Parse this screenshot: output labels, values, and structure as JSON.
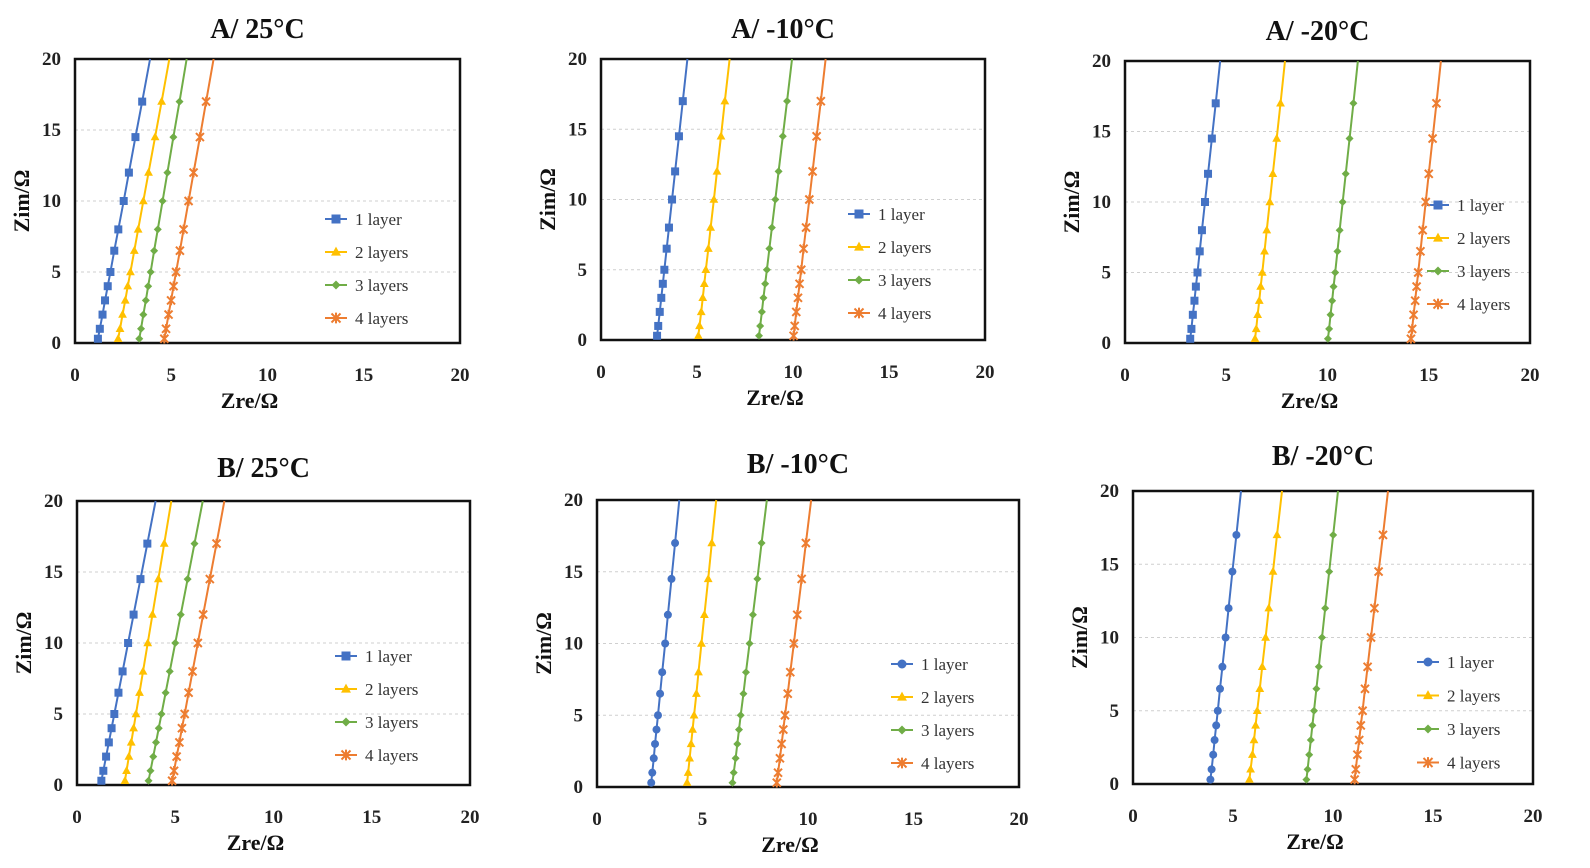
{
  "colors": {
    "1 layer": "#4472C4",
    "2 layers": "#FFC000",
    "3 layers": "#70AD47",
    "4 layers": "#ED7D31"
  },
  "chart_data": [
    {
      "type": "line",
      "title": "A/ 25°C",
      "xlabel": "Zre/Ω",
      "ylabel": "Zim/Ω",
      "xlim": [
        0,
        20
      ],
      "ylim": [
        0,
        20
      ],
      "xticks": [
        "0",
        "5",
        "10",
        "15",
        "20"
      ],
      "yticks": [
        "0",
        "5",
        "10",
        "15",
        "20"
      ],
      "grid": "horizontal dashed",
      "legend": "right",
      "y": [
        0.3,
        1,
        2,
        3,
        4,
        5,
        6.5,
        8,
        10,
        12,
        14.5,
        17,
        20
      ],
      "series": [
        {
          "name": "1 layer",
          "marker": "square",
          "x": [
            1.19,
            1.29,
            1.43,
            1.56,
            1.7,
            1.84,
            2.04,
            2.25,
            2.53,
            2.8,
            3.14,
            3.49,
            3.9
          ]
        },
        {
          "name": "2 layers",
          "marker": "triangle",
          "x": [
            2.24,
            2.34,
            2.47,
            2.61,
            2.74,
            2.88,
            3.08,
            3.28,
            3.55,
            3.82,
            4.16,
            4.5,
            4.9
          ]
        },
        {
          "name": "3 layers",
          "marker": "diamond",
          "x": [
            3.34,
            3.43,
            3.55,
            3.68,
            3.8,
            3.93,
            4.11,
            4.3,
            4.55,
            4.8,
            5.11,
            5.43,
            5.8
          ]
        },
        {
          "name": "4 layers",
          "marker": "star",
          "x": [
            4.64,
            4.73,
            4.86,
            4.99,
            5.12,
            5.25,
            5.45,
            5.64,
            5.9,
            6.16,
            6.49,
            6.81,
            7.2
          ]
        }
      ]
    },
    {
      "type": "line",
      "title": "A/ -10°C",
      "xlabel": "Zre/Ω",
      "ylabel": "Zim/Ω",
      "xlim": [
        0,
        20
      ],
      "ylim": [
        0,
        20
      ],
      "xticks": [
        "0",
        "5",
        "10",
        "15",
        "20"
      ],
      "yticks": [
        "0",
        "5",
        "10",
        "15",
        "20"
      ],
      "grid": "horizontal dashed",
      "legend": "right",
      "y": [
        0.3,
        1,
        2,
        3,
        4,
        5,
        6.5,
        8,
        10,
        12,
        14.5,
        17,
        20
      ],
      "series": [
        {
          "name": "1 layer",
          "marker": "square",
          "x": [
            2.92,
            2.98,
            3.06,
            3.14,
            3.22,
            3.3,
            3.42,
            3.54,
            3.7,
            3.86,
            4.06,
            4.26,
            4.5
          ]
        },
        {
          "name": "2 layers",
          "marker": "triangle",
          "x": [
            5.07,
            5.13,
            5.22,
            5.3,
            5.38,
            5.46,
            5.59,
            5.71,
            5.88,
            6.04,
            6.25,
            6.45,
            6.7
          ]
        },
        {
          "name": "3 layers",
          "marker": "diamond",
          "x": [
            8.23,
            8.29,
            8.38,
            8.46,
            8.55,
            8.64,
            8.77,
            8.9,
            9.08,
            9.25,
            9.47,
            9.69,
            9.95
          ]
        },
        {
          "name": "4 layers",
          "marker": "star",
          "x": [
            10.03,
            10.09,
            10.17,
            10.26,
            10.34,
            10.43,
            10.55,
            10.68,
            10.85,
            11.02,
            11.23,
            11.45,
            11.7
          ]
        }
      ]
    },
    {
      "type": "line",
      "title": "A/ -20°C",
      "xlabel": "Zre/Ω",
      "ylabel": "Zim/Ω",
      "xlim": [
        0,
        20
      ],
      "ylim": [
        0,
        20
      ],
      "xticks": [
        "0",
        "5",
        "10",
        "15",
        "20"
      ],
      "yticks": [
        "0",
        "5",
        "10",
        "15",
        "20"
      ],
      "grid": "horizontal dashed",
      "legend": "right",
      "y": [
        0.3,
        1,
        2,
        3,
        4,
        5,
        6.5,
        8,
        10,
        12,
        14.5,
        17,
        20
      ],
      "series": [
        {
          "name": "1 layer",
          "marker": "square",
          "x": [
            3.22,
            3.28,
            3.35,
            3.43,
            3.5,
            3.58,
            3.69,
            3.8,
            3.95,
            4.1,
            4.29,
            4.48,
            4.7
          ]
        },
        {
          "name": "2 layers",
          "marker": "triangle",
          "x": [
            6.42,
            6.48,
            6.55,
            6.63,
            6.7,
            6.78,
            6.89,
            7.0,
            7.15,
            7.3,
            7.49,
            7.68,
            7.9
          ]
        },
        {
          "name": "3 layers",
          "marker": "diamond",
          "x": [
            10.02,
            10.08,
            10.15,
            10.23,
            10.3,
            10.38,
            10.49,
            10.6,
            10.75,
            10.9,
            11.09,
            11.28,
            11.5
          ]
        },
        {
          "name": "4 layers",
          "marker": "star",
          "x": [
            14.12,
            14.18,
            14.25,
            14.33,
            14.4,
            14.48,
            14.59,
            14.7,
            14.85,
            15.0,
            15.19,
            15.38,
            15.6
          ]
        }
      ]
    },
    {
      "type": "line",
      "title": "B/ 25°C",
      "xlabel": "Zre/Ω",
      "ylabel": "Zim/Ω",
      "xlim": [
        0,
        20
      ],
      "ylim": [
        0,
        20
      ],
      "xticks": [
        "0",
        "5",
        "10",
        "15",
        "20"
      ],
      "yticks": [
        "0",
        "5",
        "10",
        "15",
        "20"
      ],
      "grid": "horizontal dashed",
      "legend": "right",
      "y": [
        0.3,
        1,
        2,
        3,
        4,
        5,
        6.5,
        8,
        10,
        12,
        14.5,
        17,
        20
      ],
      "series": [
        {
          "name": "1 layer",
          "marker": "square",
          "x": [
            1.24,
            1.34,
            1.48,
            1.62,
            1.76,
            1.9,
            2.11,
            2.32,
            2.6,
            2.88,
            3.23,
            3.58,
            4.0
          ]
        },
        {
          "name": "2 layers",
          "marker": "triangle",
          "x": [
            2.44,
            2.52,
            2.64,
            2.76,
            2.88,
            3.0,
            3.18,
            3.36,
            3.6,
            3.84,
            4.14,
            4.44,
            4.8
          ]
        },
        {
          "name": "3 layers",
          "marker": "diamond",
          "x": [
            3.64,
            3.74,
            3.88,
            4.02,
            4.16,
            4.3,
            4.51,
            4.72,
            5.0,
            5.28,
            5.63,
            5.98,
            6.4
          ]
        },
        {
          "name": "4 layers",
          "marker": "star",
          "x": [
            4.84,
            4.94,
            5.07,
            5.21,
            5.34,
            5.48,
            5.68,
            5.88,
            6.15,
            6.42,
            6.76,
            7.1,
            7.5
          ]
        }
      ]
    },
    {
      "type": "line",
      "title": "B/ -10°C",
      "xlabel": "Zre/Ω",
      "ylabel": "Zim/Ω",
      "xlim": [
        0,
        20
      ],
      "ylim": [
        0,
        20
      ],
      "xticks": [
        "0",
        "5",
        "10",
        "15",
        "20"
      ],
      "yticks": [
        "0",
        "5",
        "10",
        "15",
        "20"
      ],
      "grid": "horizontal dashed",
      "legend": "right",
      "y": [
        0.3,
        1,
        2,
        3,
        4,
        5,
        6.5,
        8,
        10,
        12,
        14.5,
        17,
        20
      ],
      "series": [
        {
          "name": "1 layer",
          "marker": "circle",
          "x": [
            2.57,
            2.62,
            2.69,
            2.75,
            2.82,
            2.89,
            2.99,
            3.09,
            3.23,
            3.36,
            3.53,
            3.7,
            3.9
          ]
        },
        {
          "name": "2 layers",
          "marker": "triangle",
          "x": [
            4.27,
            4.32,
            4.39,
            4.46,
            4.53,
            4.6,
            4.71,
            4.81,
            4.95,
            5.09,
            5.27,
            5.44,
            5.65
          ]
        },
        {
          "name": "3 layers",
          "marker": "diamond",
          "x": [
            6.42,
            6.48,
            6.57,
            6.65,
            6.73,
            6.81,
            6.94,
            7.06,
            7.23,
            7.39,
            7.6,
            7.8,
            8.05
          ]
        },
        {
          "name": "4 layers",
          "marker": "star",
          "x": [
            8.52,
            8.58,
            8.67,
            8.75,
            8.83,
            8.91,
            9.04,
            9.16,
            9.33,
            9.49,
            9.7,
            9.9,
            10.15
          ]
        }
      ]
    },
    {
      "type": "line",
      "title": "B/ -20°C",
      "xlabel": "Zre/Ω",
      "ylabel": "Zim/Ω",
      "xlim": [
        0,
        20
      ],
      "ylim": [
        0,
        20
      ],
      "xticks": [
        "0",
        "5",
        "10",
        "15",
        "20"
      ],
      "yticks": [
        "0",
        "5",
        "10",
        "15",
        "20"
      ],
      "grid": "horizontal dashed",
      "legend": "right",
      "y": [
        0.3,
        1,
        2,
        3,
        4,
        5,
        6.5,
        8,
        10,
        12,
        14.5,
        17,
        20
      ],
      "series": [
        {
          "name": "1 layer",
          "marker": "circle",
          "x": [
            3.87,
            3.93,
            4.01,
            4.08,
            4.16,
            4.24,
            4.35,
            4.47,
            4.63,
            4.78,
            4.97,
            5.17,
            5.4
          ]
        },
        {
          "name": "2 layers",
          "marker": "triangle",
          "x": [
            5.82,
            5.88,
            5.97,
            6.05,
            6.13,
            6.21,
            6.34,
            6.46,
            6.63,
            6.79,
            7.0,
            7.2,
            7.45
          ]
        },
        {
          "name": "3 layers",
          "marker": "diamond",
          "x": [
            8.67,
            8.73,
            8.81,
            8.89,
            8.97,
            9.05,
            9.17,
            9.29,
            9.45,
            9.61,
            9.81,
            10.01,
            10.25
          ]
        },
        {
          "name": "4 layers",
          "marker": "star",
          "x": [
            11.08,
            11.14,
            11.22,
            11.31,
            11.39,
            11.48,
            11.6,
            11.73,
            11.9,
            12.07,
            12.28,
            12.5,
            12.75
          ]
        }
      ]
    }
  ]
}
